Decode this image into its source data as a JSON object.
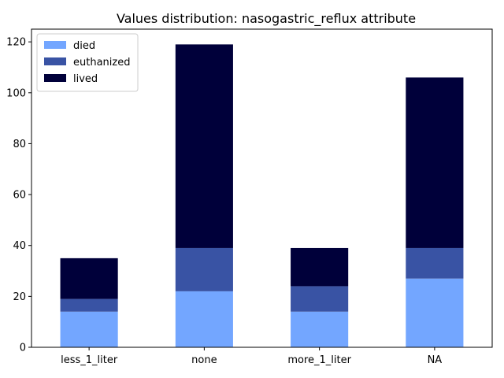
{
  "chart_data": {
    "type": "bar",
    "stacked": true,
    "title": "Values distribution: nasogastric_reflux attribute",
    "xlabel": "",
    "ylabel": "",
    "categories": [
      "less_1_liter",
      "none",
      "more_1_liter",
      "NA"
    ],
    "series": [
      {
        "name": "died",
        "color": "#73a6ff",
        "values": [
          14,
          22,
          14,
          27
        ]
      },
      {
        "name": "euthanized",
        "color": "#3953a4",
        "values": [
          5,
          17,
          10,
          12
        ]
      },
      {
        "name": "lived",
        "color": "#00003a",
        "values": [
          16,
          80,
          15,
          67
        ]
      }
    ],
    "ylim": [
      0,
      125
    ],
    "yticks": [
      0,
      20,
      40,
      60,
      80,
      100,
      120
    ],
    "grid": false,
    "legend": "top-left"
  }
}
